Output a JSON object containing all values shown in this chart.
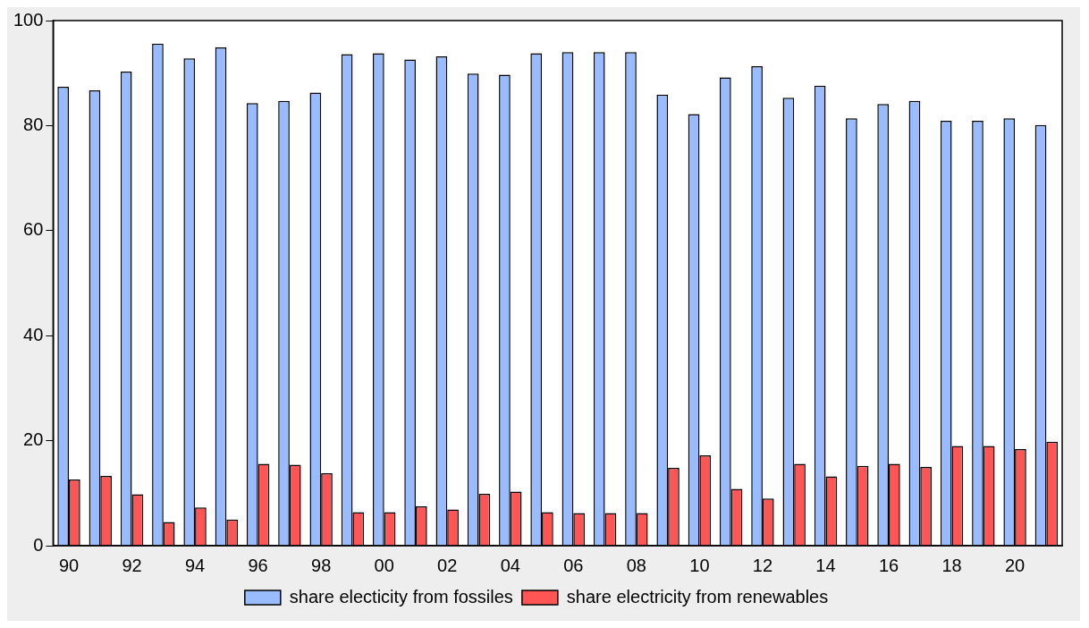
{
  "chart_data": {
    "type": "bar",
    "categories": [
      "90",
      null,
      "92",
      null,
      "94",
      null,
      "96",
      null,
      "98",
      null,
      "00",
      null,
      "02",
      null,
      "04",
      null,
      "06",
      null,
      "08",
      null,
      "10",
      null,
      "12",
      null,
      "14",
      null,
      "16",
      null,
      "18",
      null,
      "20",
      null
    ],
    "series": [
      {
        "name": "share electicity from fossiles",
        "color": "#99bbff",
        "values": [
          87.4,
          86.7,
          90.3,
          95.6,
          92.8,
          94.9,
          84.3,
          84.7,
          86.3,
          93.6,
          93.8,
          92.6,
          93.2,
          89.9,
          89.7,
          93.8,
          94.0,
          94.0,
          94.0,
          85.9,
          82.2,
          89.2,
          91.3,
          85.3,
          87.6,
          81.4,
          84.1,
          84.7,
          80.9,
          80.9,
          81.4,
          80.1
        ]
      },
      {
        "name": "share electricity from renewables",
        "color": "#ff5555",
        "values": [
          12.6,
          13.3,
          9.8,
          4.5,
          7.3,
          5.0,
          15.6,
          15.4,
          13.8,
          6.4,
          6.4,
          7.5,
          6.9,
          9.9,
          10.3,
          6.4,
          6.2,
          6.2,
          6.2,
          14.8,
          17.2,
          10.8,
          9.0,
          15.6,
          13.2,
          15.2,
          15.6,
          15.0,
          19.0,
          19.0,
          18.4,
          19.8
        ]
      }
    ],
    "ylim": [
      0,
      100
    ],
    "yticks": [
      0,
      20,
      40,
      60,
      80,
      100
    ],
    "grid": false,
    "legend": "bottom"
  }
}
